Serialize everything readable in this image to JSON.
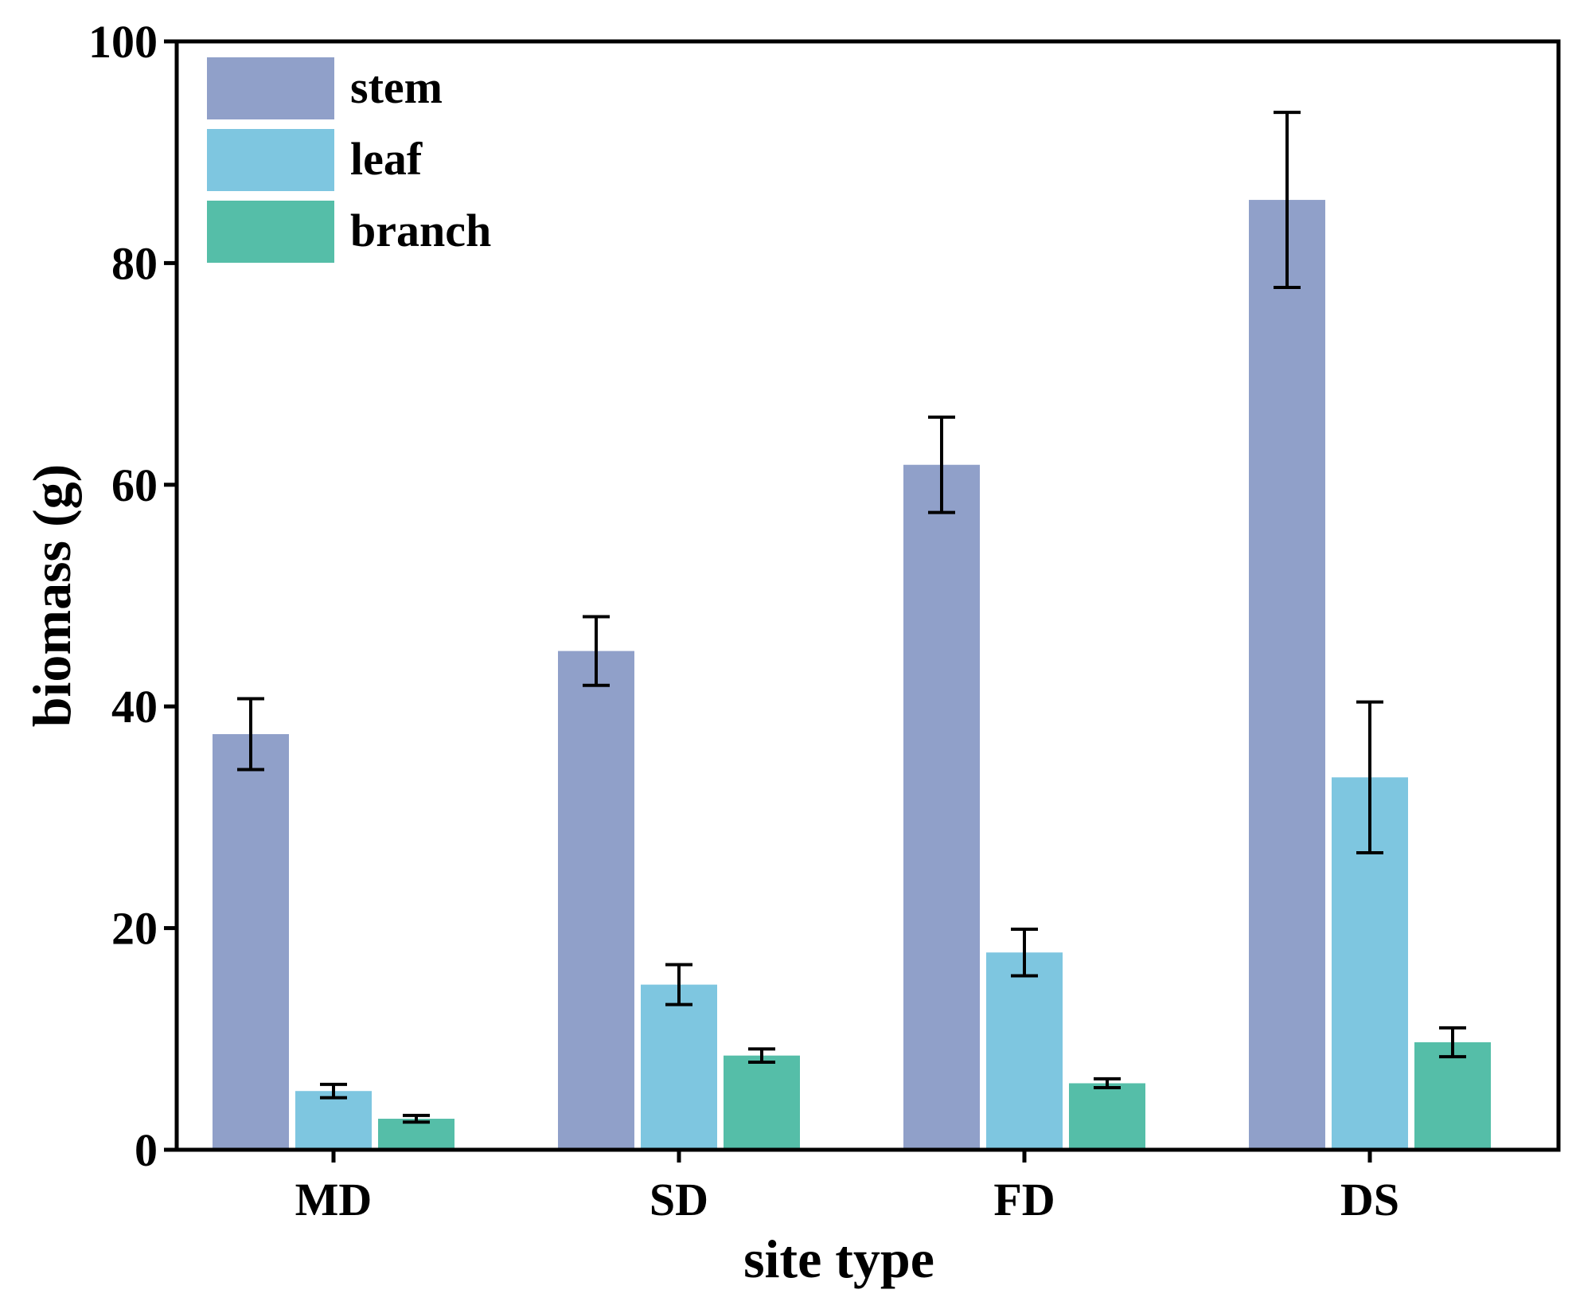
{
  "chart_data": {
    "type": "bar",
    "title": "",
    "xlabel": "site type",
    "ylabel": "biomass (g)",
    "categories": [
      "MD",
      "SD",
      "FD",
      "DS"
    ],
    "ylim": [
      0,
      100
    ],
    "yticks": [
      0,
      20,
      40,
      60,
      80,
      100
    ],
    "legend_position": "top-left",
    "grid": false,
    "series": [
      {
        "name": "stem",
        "color": "#90a0c9",
        "values": [
          37.5,
          45.0,
          61.8,
          85.7
        ],
        "errors": [
          3.2,
          3.1,
          4.3,
          7.9
        ]
      },
      {
        "name": "leaf",
        "color": "#7ec6e0",
        "values": [
          5.3,
          14.9,
          17.8,
          33.6
        ],
        "errors": [
          0.6,
          1.8,
          2.1,
          6.8
        ]
      },
      {
        "name": "branch",
        "color": "#55bea8",
        "values": [
          2.8,
          8.5,
          6.0,
          9.7
        ],
        "errors": [
          0.3,
          0.6,
          0.4,
          1.3
        ]
      }
    ]
  }
}
